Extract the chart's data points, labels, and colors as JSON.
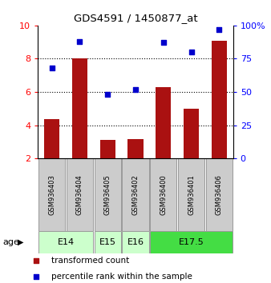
{
  "title": "GDS4591 / 1450877_at",
  "samples": [
    "GSM936403",
    "GSM936404",
    "GSM936405",
    "GSM936402",
    "GSM936400",
    "GSM936401",
    "GSM936406"
  ],
  "transformed_count": [
    4.35,
    8.0,
    3.1,
    3.15,
    6.3,
    5.0,
    9.1
  ],
  "percentile_rank": [
    68,
    88,
    48,
    52,
    87,
    80,
    97
  ],
  "bar_color": "#aa1111",
  "dot_color": "#0000cc",
  "ylim_left": [
    2,
    10
  ],
  "ylim_right": [
    0,
    100
  ],
  "yticks_left": [
    2,
    4,
    6,
    8,
    10
  ],
  "yticks_right": [
    0,
    25,
    50,
    75,
    100
  ],
  "ytick_labels_right": [
    "0",
    "25",
    "50",
    "75",
    "100%"
  ],
  "grid_lines": [
    4,
    6,
    8
  ],
  "age_groups": [
    {
      "label": "E14",
      "samples": [
        "GSM936403",
        "GSM936404"
      ],
      "color": "#ccffcc"
    },
    {
      "label": "E15",
      "samples": [
        "GSM936405"
      ],
      "color": "#ccffcc"
    },
    {
      "label": "E16",
      "samples": [
        "GSM936402"
      ],
      "color": "#ccffcc"
    },
    {
      "label": "E17.5",
      "samples": [
        "GSM936400",
        "GSM936401",
        "GSM936406"
      ],
      "color": "#44dd44"
    }
  ],
  "legend_red_label": "transformed count",
  "legend_blue_label": "percentile rank within the sample",
  "sample_box_color": "#cccccc",
  "sample_box_edge": "#999999",
  "age_box_edge": "#999999"
}
